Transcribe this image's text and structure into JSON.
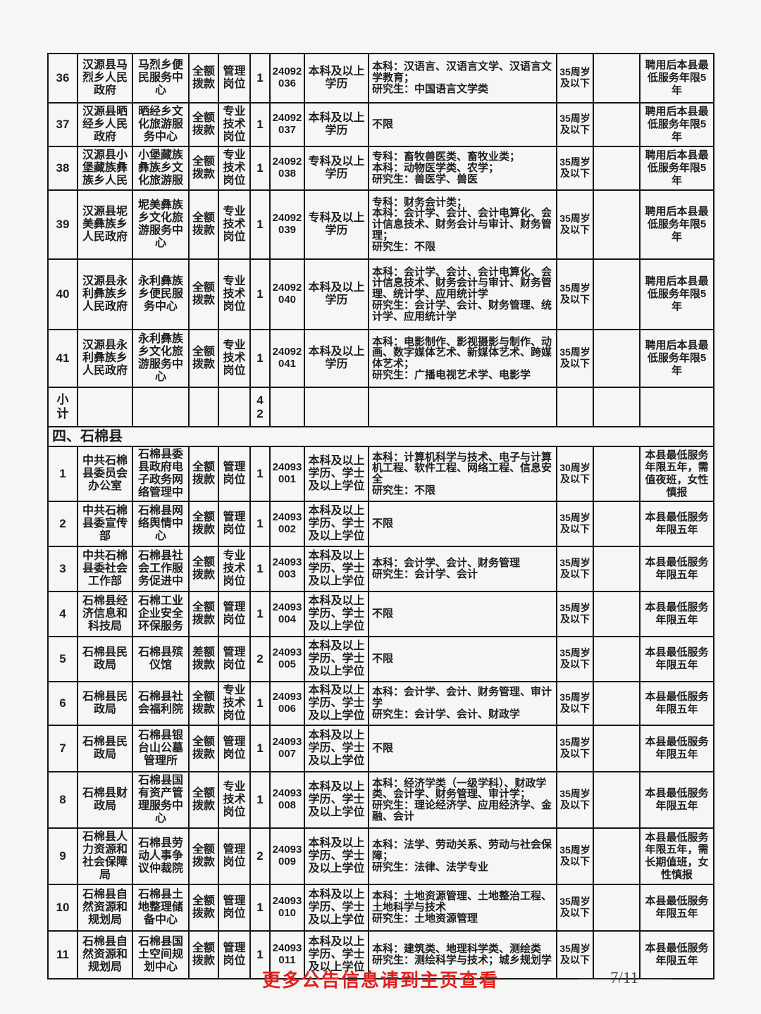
{
  "colors": {
    "page_background": "#f6f6f4",
    "table_border": "#161616",
    "text": "#1d1d1d",
    "footer_accent_red": "#e2201e",
    "page_number_gray": "#454545"
  },
  "sections": [
    {
      "rows": [
        {
          "seq": "36",
          "dept": "汉源县马烈乡人民政府",
          "unit": "马烈乡便民服务中心",
          "funding": "全额拨款",
          "post": "管理岗位",
          "count": "1",
          "code": "24092036",
          "edu": "本科及以上学历",
          "majors": "本科：汉语言、汉语言文学、汉语言文学教育；\n研究生：中国语言文学类",
          "age": "35周岁及以下",
          "blank": "",
          "note": "聘用后本县最低服务年限5年"
        },
        {
          "seq": "37",
          "dept": "汉源县晒经乡人民政府",
          "unit": "晒经乡文化旅游服务中心",
          "funding": "全额拨款",
          "post": "专业技术岗位",
          "count": "1",
          "code": "24092037",
          "edu": "本科及以上学历",
          "majors": "不限",
          "age": "35周岁及以下",
          "blank": "",
          "note": "聘用后本县最低服务年限5年"
        },
        {
          "seq": "38",
          "dept": "汉源县小堡藏族彝族乡人民",
          "unit": "小堡藏族彝族乡文化旅游服",
          "funding": "全额拨款",
          "post": "专业技术岗位",
          "count": "1",
          "code": "24092038",
          "edu": "专科及以上学历",
          "majors": "专科：畜牧兽医类、畜牧业类；\n本科：动物医学类、农学；\n研究生：兽医学、兽医",
          "age": "35周岁及以下",
          "blank": "",
          "note": "聘用后本县最低服务年限5年"
        },
        {
          "seq": "39",
          "dept": "汉源县坭美彝族乡人民政府",
          "unit": "坭美彝族乡文化旅游服务中心",
          "funding": "全额拨款",
          "post": "专业技术岗位",
          "count": "1",
          "code": "24092039",
          "edu": "专科及以上学历",
          "majors": "专科：财务会计类；\n本科：会计学、会计、会计电算化、会计信息技术、财务会计与审计、财务管理；\n研究生：不限",
          "age": "35周岁及以下",
          "blank": "",
          "note": "聘用后本县最低服务年限5年"
        },
        {
          "seq": "40",
          "dept": "汉源县永利彝族乡人民政府",
          "unit": "永利彝族乡便民服务中心",
          "funding": "全额拨款",
          "post": "专业技术岗位",
          "count": "1",
          "code": "24092040",
          "edu": "本科及以上学历",
          "majors": "本科：会计学、会计、会计电算化、会计信息技术、财务会计与审计、财务管理、统计学、应用统计学\n研究生：会计学、会计、财务管理、统计学、应用统计学",
          "age": "35周岁及以下",
          "blank": "",
          "note": "聘用后本县最低服务年限5年"
        },
        {
          "seq": "41",
          "dept": "汉源县永利彝族乡人民政府",
          "unit": "永利彝族乡文化旅游服务中心",
          "funding": "全额拨款",
          "post": "专业技术岗位",
          "count": "1",
          "code": "24092041",
          "edu": "本科及以上学历",
          "majors": "本科：电影制作、影视摄影与制作、动画、数字媒体艺术、新媒体艺术、跨媒体艺术；\n研究生：广播电视艺术学、电影学",
          "age": "35周岁及以下",
          "blank": "",
          "note": "聘用后本县最低服务年限5年"
        }
      ],
      "subtotal": {
        "label": "小计",
        "count": "42"
      }
    },
    {
      "header": "四、石棉县",
      "rows": [
        {
          "seq": "1",
          "dept": "中共石棉县委员会办公室",
          "unit": "石棉县委县政府电子政务网络管理中",
          "funding": "全额拨款",
          "post": "管理岗位",
          "count": "1",
          "code": "24093001",
          "edu": "本科及以上学历、学士及以上学位",
          "majors": "本科：计算机科学与技术、电子与计算机工程、软件工程、网络工程、信息安全\n研究生：不限",
          "age": "30周岁及以下",
          "blank": "",
          "note": "本县最低服务年限五年，需值夜班，女性慎报"
        },
        {
          "seq": "2",
          "dept": "中共石棉县委宣传部",
          "unit": "石棉县网络舆情中心",
          "funding": "全额拨款",
          "post": "管理岗位",
          "count": "1",
          "code": "24093002",
          "edu": "本科及以上学历、学士及以上学位",
          "majors": "不限",
          "age": "35周岁及以下",
          "blank": "",
          "note": "本县最低服务年限五年"
        },
        {
          "seq": "3",
          "dept": "中共石棉县委社会工作部",
          "unit": "石棉县社会工作服务促进中",
          "funding": "全额拨款",
          "post": "专业技术岗位",
          "count": "1",
          "code": "24093003",
          "edu": "本科及以上学历、学士及以上学位",
          "majors": "本科：会计学、会计、财务管理\n研究生：会计学、会计",
          "age": "35周岁及以下",
          "blank": "",
          "note": "本县最低服务年限五年"
        },
        {
          "seq": "4",
          "dept": "石棉县经济信息和科技局",
          "unit": "石棉工业企业安全环保服务",
          "funding": "全额拨款",
          "post": "管理岗位",
          "count": "1",
          "code": "24093004",
          "edu": "本科及以上学历、学士及以上学位",
          "majors": "不限",
          "age": "35周岁及以下",
          "blank": "",
          "note": "本县最低服务年限五年"
        },
        {
          "seq": "5",
          "dept": "石棉县民政局",
          "unit": "石棉县殡仪馆",
          "funding": "差额拨款",
          "post": "管理岗位",
          "count": "2",
          "code": "24093005",
          "edu": "本科及以上学历、学士及以上学位",
          "majors": "不限",
          "age": "35周岁及以下",
          "blank": "",
          "note": "本县最低服务年限五年"
        },
        {
          "seq": "6",
          "dept": "石棉县民政局",
          "unit": "石棉县社会福利院",
          "funding": "全额拨款",
          "post": "专业技术岗位",
          "count": "1",
          "code": "24093006",
          "edu": "本科及以上学历、学士及以上学位",
          "majors": "本科：会计学、会计、财务管理、审计学\n研究生：会计学、会计、财政学",
          "age": "35周岁及以下",
          "blank": "",
          "note": "本县最低服务年限五年"
        },
        {
          "seq": "7",
          "dept": "石棉县民政局",
          "unit": "石棉县银台山公墓管理所",
          "funding": "全额拨款",
          "post": "管理岗位",
          "count": "1",
          "code": "24093007",
          "edu": "本科及以上学历、学士及以上学位",
          "majors": "不限",
          "age": "35周岁及以下",
          "blank": "",
          "note": "本县最低服务年限五年"
        },
        {
          "seq": "8",
          "dept": "石棉县财政局",
          "unit": "石棉县国有资产管理服务中心",
          "funding": "全额拨款",
          "post": "专业技术岗位",
          "count": "1",
          "code": "24093008",
          "edu": "本科及以上学历、学士及以上学位",
          "majors": "本科：经济学类（一级学科）、财政学类、会计学、财务管理、审计学；\n研究生：理论经济学、应用经济学、金融、会计",
          "age": "35周岁及以下",
          "blank": "",
          "note": "本县最低服务年限五年"
        },
        {
          "seq": "9",
          "dept": "石棉县人力资源和社会保障局",
          "unit": "石棉县劳动人事争议仲裁院",
          "funding": "全额拨款",
          "post": "管理岗位",
          "count": "2",
          "code": "24093009",
          "edu": "本科及以上学历、学士及以上学位",
          "majors": "本科：法学、劳动关系、劳动与社会保障；\n研究生：法律、法学专业",
          "age": "35周岁及以下",
          "blank": "",
          "note": "本县最低服务年限五年，需长期值班，女性慎报"
        },
        {
          "seq": "10",
          "dept": "石棉县自然资源和规划局",
          "unit": "石棉县土地整理储备中心",
          "funding": "全额拨款",
          "post": "管理岗位",
          "count": "1",
          "code": "24093010",
          "edu": "本科及以上学历、学士及以上学位",
          "majors": "本科：土地资源管理、土地整治工程、土地科学与技术\n研究生：土地资源管理",
          "age": "35周岁及以下",
          "blank": "",
          "note": "本县最低服务年限五年"
        },
        {
          "seq": "11",
          "dept": "石棉县自然资源和规划局",
          "unit": "石棉县国土空间规划中心",
          "funding": "全额拨款",
          "post": "管理岗位",
          "count": "1",
          "code": "24093011",
          "edu": "本科及以上学历、学士及以上学位",
          "majors": "本科：建筑类、地理科学类、测绘类\n研究生：测绘科学与技术；城乡规划学",
          "age": "35周岁及以下",
          "blank": "",
          "note": "本县最低服务年限五年"
        }
      ]
    }
  ],
  "footer": {
    "notice": "更多公告信息请到主页查看",
    "page_number": "——7/11——"
  }
}
